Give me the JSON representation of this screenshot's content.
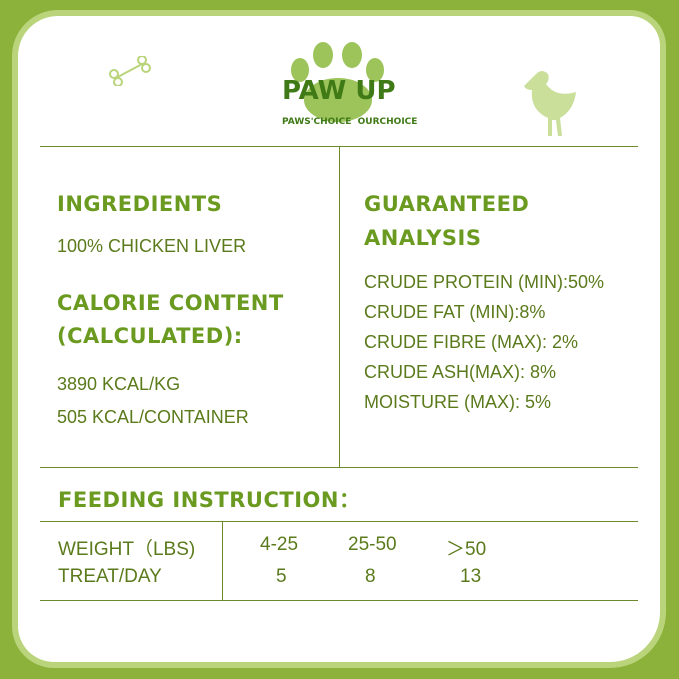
{
  "brand": {
    "name": "PAW UP",
    "tagline": "PAWS'CHOICE  OURCHOICE"
  },
  "colors": {
    "background": "#8cb23c",
    "heading": "#6a9a1f",
    "text": "#5b7a1c",
    "paw": "#9cc45a"
  },
  "ingredients": {
    "title": "INGREDIENTS",
    "value": "100% CHICKEN LIVER"
  },
  "calorie": {
    "title1": "CALORIE CONTENT",
    "title2": "(CALCULATED):",
    "values": [
      "3890 KCAL/KG",
      "505 KCAL/CONTAINER"
    ]
  },
  "analysis": {
    "title1": "GUARANTEED",
    "title2": "ANALYSIS",
    "items": [
      "CRUDE PROTEIN (MIN):50%",
      "CRUDE FAT (MIN):8%",
      "CRUDE FIBRE (MAX): 2%",
      "CRUDE ASH(MAX): 8%",
      "MOISTURE (MAX): 5%"
    ]
  },
  "feeding": {
    "title": "FEEDING INSTRUCTION：",
    "rows": [
      {
        "label": "WEIGHT（LBS)",
        "values": [
          "4-25",
          "25-50",
          "＞50"
        ]
      },
      {
        "label": "TREAT/DAY",
        "values": [
          "5",
          "8",
          "13"
        ]
      }
    ]
  }
}
